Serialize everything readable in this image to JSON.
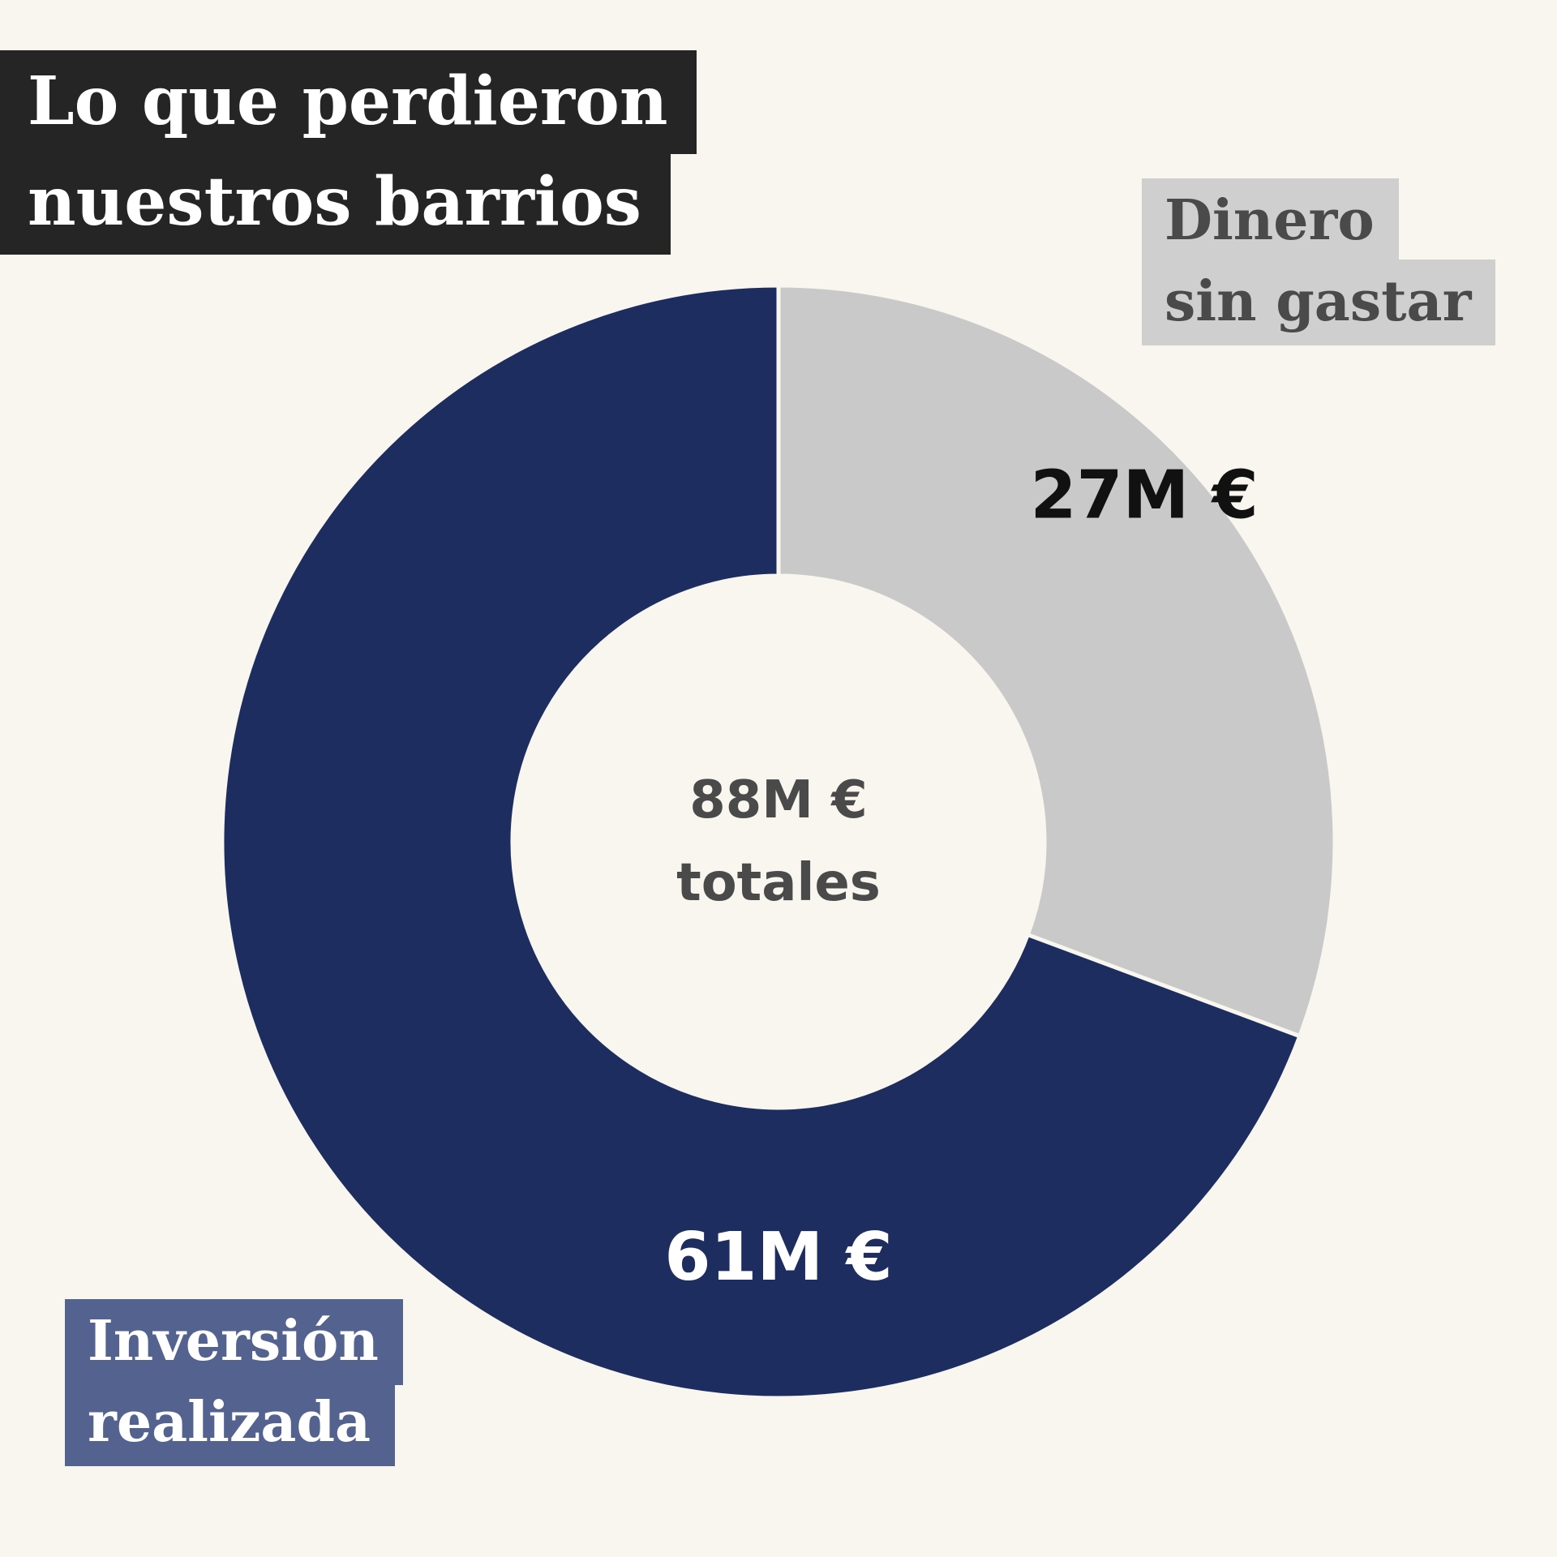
{
  "title": {
    "line1": "Lo que perdieron",
    "line2": "nuestros barrios"
  },
  "center": {
    "line1": "88M €",
    "line2": "totales"
  },
  "legend": {
    "unspent": {
      "line1": "Dinero",
      "line2": "sin gastar"
    },
    "invested": {
      "line1": "Inversión",
      "line2": "realizada"
    }
  },
  "colors": {
    "background": "#f8f6ef",
    "invested": "#1e2d5f",
    "unspent": "#c9c9c9",
    "title_bg": "#252525"
  },
  "chart_data": {
    "type": "pie",
    "variant": "donut",
    "total_label": "88M € totales",
    "slices": [
      {
        "name": "Dinero sin gastar",
        "value": 27,
        "label": "27M €",
        "color": "#c9c9c9",
        "label_color": "#111111"
      },
      {
        "name": "Inversión realizada",
        "value": 61,
        "label": "61M €",
        "color": "#1e2d5f",
        "label_color": "#ffffff"
      }
    ]
  }
}
